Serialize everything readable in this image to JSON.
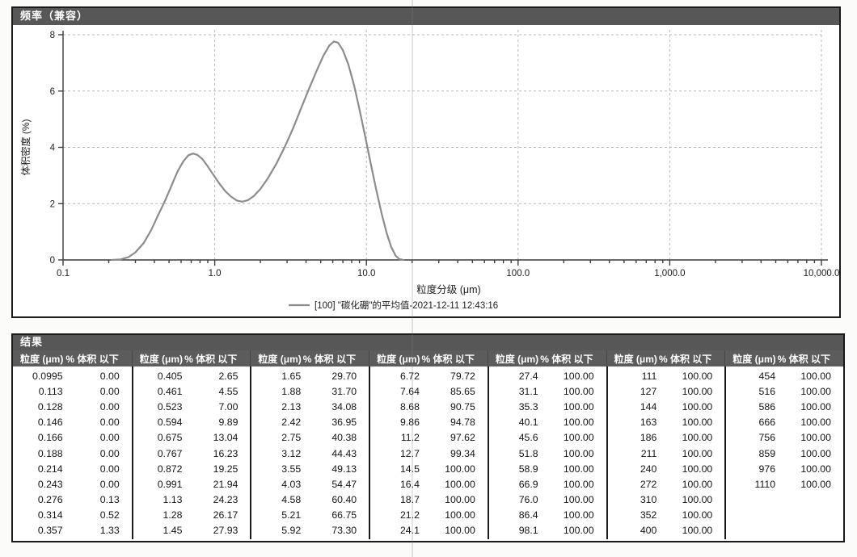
{
  "colors": {
    "panel_header_bg": "#575757",
    "table_header_bg": "#5c5c5c",
    "curve": "#8c8c8c",
    "grid": "#b8b8b8",
    "axis": "#3c3c3c",
    "text": "#1c1c1c",
    "border": "#1a1a1a"
  },
  "chart_data": {
    "type": "line",
    "title": "频率（兼容）",
    "xlabel": "粒度分级 (μm)",
    "ylabel": "体积密度 (%)",
    "x_scale": "log",
    "xlim": [
      0.1,
      10000
    ],
    "ylim": [
      0,
      8
    ],
    "x_tick_values": [
      0.1,
      1,
      10,
      100,
      1000,
      10000
    ],
    "x_tick_labels": [
      "0.1",
      "1.0",
      "10.0",
      "100.0",
      "1,000.0",
      "10,000.0"
    ],
    "y_tick_values": [
      0,
      2,
      4,
      6,
      8
    ],
    "grid": true,
    "x_minor_ticks": true,
    "legend_position": "bottom",
    "series": [
      {
        "name": "[100] \"碳化硼\"的平均值-2021-12-11 12:43:16",
        "color": "#8c8c8c",
        "x": [
          0.21,
          0.24,
          0.27,
          0.3,
          0.34,
          0.38,
          0.42,
          0.47,
          0.52,
          0.57,
          0.62,
          0.67,
          0.72,
          0.77,
          0.83,
          0.9,
          0.98,
          1.07,
          1.17,
          1.28,
          1.4,
          1.52,
          1.65,
          1.8,
          2.0,
          2.25,
          2.55,
          2.9,
          3.3,
          3.75,
          4.2,
          4.7,
          5.2,
          5.7,
          6.1,
          6.5,
          7.0,
          7.6,
          8.3,
          9.0,
          9.8,
          10.7,
          11.6,
          12.6,
          13.6,
          14.6,
          15.6,
          16.5,
          17.5
        ],
        "y": [
          0.0,
          0.02,
          0.1,
          0.27,
          0.6,
          1.05,
          1.55,
          2.1,
          2.65,
          3.15,
          3.5,
          3.72,
          3.78,
          3.73,
          3.58,
          3.32,
          3.02,
          2.72,
          2.45,
          2.25,
          2.11,
          2.07,
          2.12,
          2.26,
          2.52,
          2.92,
          3.42,
          4.02,
          4.7,
          5.45,
          6.1,
          6.72,
          7.25,
          7.62,
          7.76,
          7.72,
          7.45,
          6.95,
          6.2,
          5.35,
          4.4,
          3.4,
          2.5,
          1.65,
          0.95,
          0.45,
          0.15,
          0.03,
          0.0
        ]
      }
    ]
  },
  "results": {
    "title": "结果",
    "header": {
      "size_label": "粒度 (μm)",
      "pct_label": "% 体积 以下"
    },
    "groups": [
      [
        [
          "0.0995",
          "0.00"
        ],
        [
          "0.113",
          "0.00"
        ],
        [
          "0.128",
          "0.00"
        ],
        [
          "0.146",
          "0.00"
        ],
        [
          "0.166",
          "0.00"
        ],
        [
          "0.188",
          "0.00"
        ],
        [
          "0.214",
          "0.00"
        ],
        [
          "0.243",
          "0.00"
        ],
        [
          "0.276",
          "0.13"
        ],
        [
          "0.314",
          "0.52"
        ],
        [
          "0.357",
          "1.33"
        ]
      ],
      [
        [
          "0.405",
          "2.65"
        ],
        [
          "0.461",
          "4.55"
        ],
        [
          "0.523",
          "7.00"
        ],
        [
          "0.594",
          "9.89"
        ],
        [
          "0.675",
          "13.04"
        ],
        [
          "0.767",
          "16.23"
        ],
        [
          "0.872",
          "19.25"
        ],
        [
          "0.991",
          "21.94"
        ],
        [
          "1.13",
          "24.23"
        ],
        [
          "1.28",
          "26.17"
        ],
        [
          "1.45",
          "27.93"
        ]
      ],
      [
        [
          "1.65",
          "29.70"
        ],
        [
          "1.88",
          "31.70"
        ],
        [
          "2.13",
          "34.08"
        ],
        [
          "2.42",
          "36.95"
        ],
        [
          "2.75",
          "40.38"
        ],
        [
          "3.12",
          "44.43"
        ],
        [
          "3.55",
          "49.13"
        ],
        [
          "4.03",
          "54.47"
        ],
        [
          "4.58",
          "60.40"
        ],
        [
          "5.21",
          "66.75"
        ],
        [
          "5.92",
          "73.30"
        ]
      ],
      [
        [
          "6.72",
          "79.72"
        ],
        [
          "7.64",
          "85.65"
        ],
        [
          "8.68",
          "90.75"
        ],
        [
          "9.86",
          "94.78"
        ],
        [
          "11.2",
          "97.62"
        ],
        [
          "12.7",
          "99.34"
        ],
        [
          "14.5",
          "100.00"
        ],
        [
          "16.4",
          "100.00"
        ],
        [
          "18.7",
          "100.00"
        ],
        [
          "21.2",
          "100.00"
        ],
        [
          "24.1",
          "100.00"
        ]
      ],
      [
        [
          "27.4",
          "100.00"
        ],
        [
          "31.1",
          "100.00"
        ],
        [
          "35.3",
          "100.00"
        ],
        [
          "40.1",
          "100.00"
        ],
        [
          "45.6",
          "100.00"
        ],
        [
          "51.8",
          "100.00"
        ],
        [
          "58.9",
          "100.00"
        ],
        [
          "66.9",
          "100.00"
        ],
        [
          "76.0",
          "100.00"
        ],
        [
          "86.4",
          "100.00"
        ],
        [
          "98.1",
          "100.00"
        ]
      ],
      [
        [
          "111",
          "100.00"
        ],
        [
          "127",
          "100.00"
        ],
        [
          "144",
          "100.00"
        ],
        [
          "163",
          "100.00"
        ],
        [
          "186",
          "100.00"
        ],
        [
          "211",
          "100.00"
        ],
        [
          "240",
          "100.00"
        ],
        [
          "272",
          "100.00"
        ],
        [
          "310",
          "100.00"
        ],
        [
          "352",
          "100.00"
        ],
        [
          "400",
          "100.00"
        ]
      ],
      [
        [
          "454",
          "100.00"
        ],
        [
          "516",
          "100.00"
        ],
        [
          "586",
          "100.00"
        ],
        [
          "666",
          "100.00"
        ],
        [
          "756",
          "100.00"
        ],
        [
          "859",
          "100.00"
        ],
        [
          "976",
          "100.00"
        ],
        [
          "1110",
          "100.00"
        ]
      ]
    ]
  }
}
